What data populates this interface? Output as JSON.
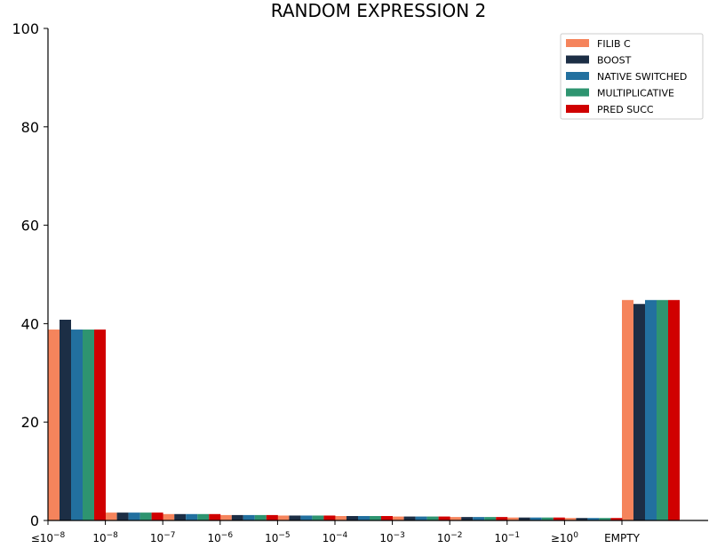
{
  "chart_data": {
    "type": "bar",
    "title": "RANDOM EXPRESSION 2",
    "xlabel": "",
    "ylabel": "",
    "ylim": [
      0,
      100
    ],
    "yticks": [
      0,
      20,
      40,
      60,
      80,
      100
    ],
    "categories": [
      {
        "pre": "≤10",
        "sup": "−8"
      },
      {
        "pre": "10",
        "sup": "−8"
      },
      {
        "pre": "10",
        "sup": "−7"
      },
      {
        "pre": "10",
        "sup": "−6"
      },
      {
        "pre": "10",
        "sup": "−5"
      },
      {
        "pre": "10",
        "sup": "−4"
      },
      {
        "pre": "10",
        "sup": "−3"
      },
      {
        "pre": "10",
        "sup": "−2"
      },
      {
        "pre": "10",
        "sup": "−1"
      },
      {
        "pre": "≥10",
        "sup": "0"
      },
      {
        "pre": "EMPTY",
        "sup": ""
      }
    ],
    "series": [
      {
        "name": "FILIB C",
        "color": "#F5845C",
        "values": [
          38.8,
          1.6,
          1.3,
          1.1,
          1.0,
          0.9,
          0.8,
          0.7,
          0.6,
          0.5,
          44.8
        ]
      },
      {
        "name": "BOOST",
        "color": "#1C2E45",
        "values": [
          40.8,
          1.6,
          1.3,
          1.1,
          1.0,
          0.9,
          0.8,
          0.7,
          0.6,
          0.5,
          44.0
        ]
      },
      {
        "name": "NATIVE SWITCHED",
        "color": "#22709F",
        "values": [
          38.8,
          1.6,
          1.3,
          1.1,
          1.0,
          0.9,
          0.8,
          0.7,
          0.6,
          0.5,
          44.8
        ]
      },
      {
        "name": "MULTIPLICATIVE",
        "color": "#2E9470",
        "values": [
          38.8,
          1.6,
          1.3,
          1.1,
          1.0,
          0.9,
          0.8,
          0.7,
          0.6,
          0.5,
          44.8
        ]
      },
      {
        "name": "PRED SUCC",
        "color": "#D00000",
        "values": [
          38.8,
          1.6,
          1.3,
          1.1,
          1.0,
          0.9,
          0.8,
          0.7,
          0.6,
          0.5,
          44.8
        ]
      }
    ],
    "legend_position": "top-right",
    "grid": false
  }
}
